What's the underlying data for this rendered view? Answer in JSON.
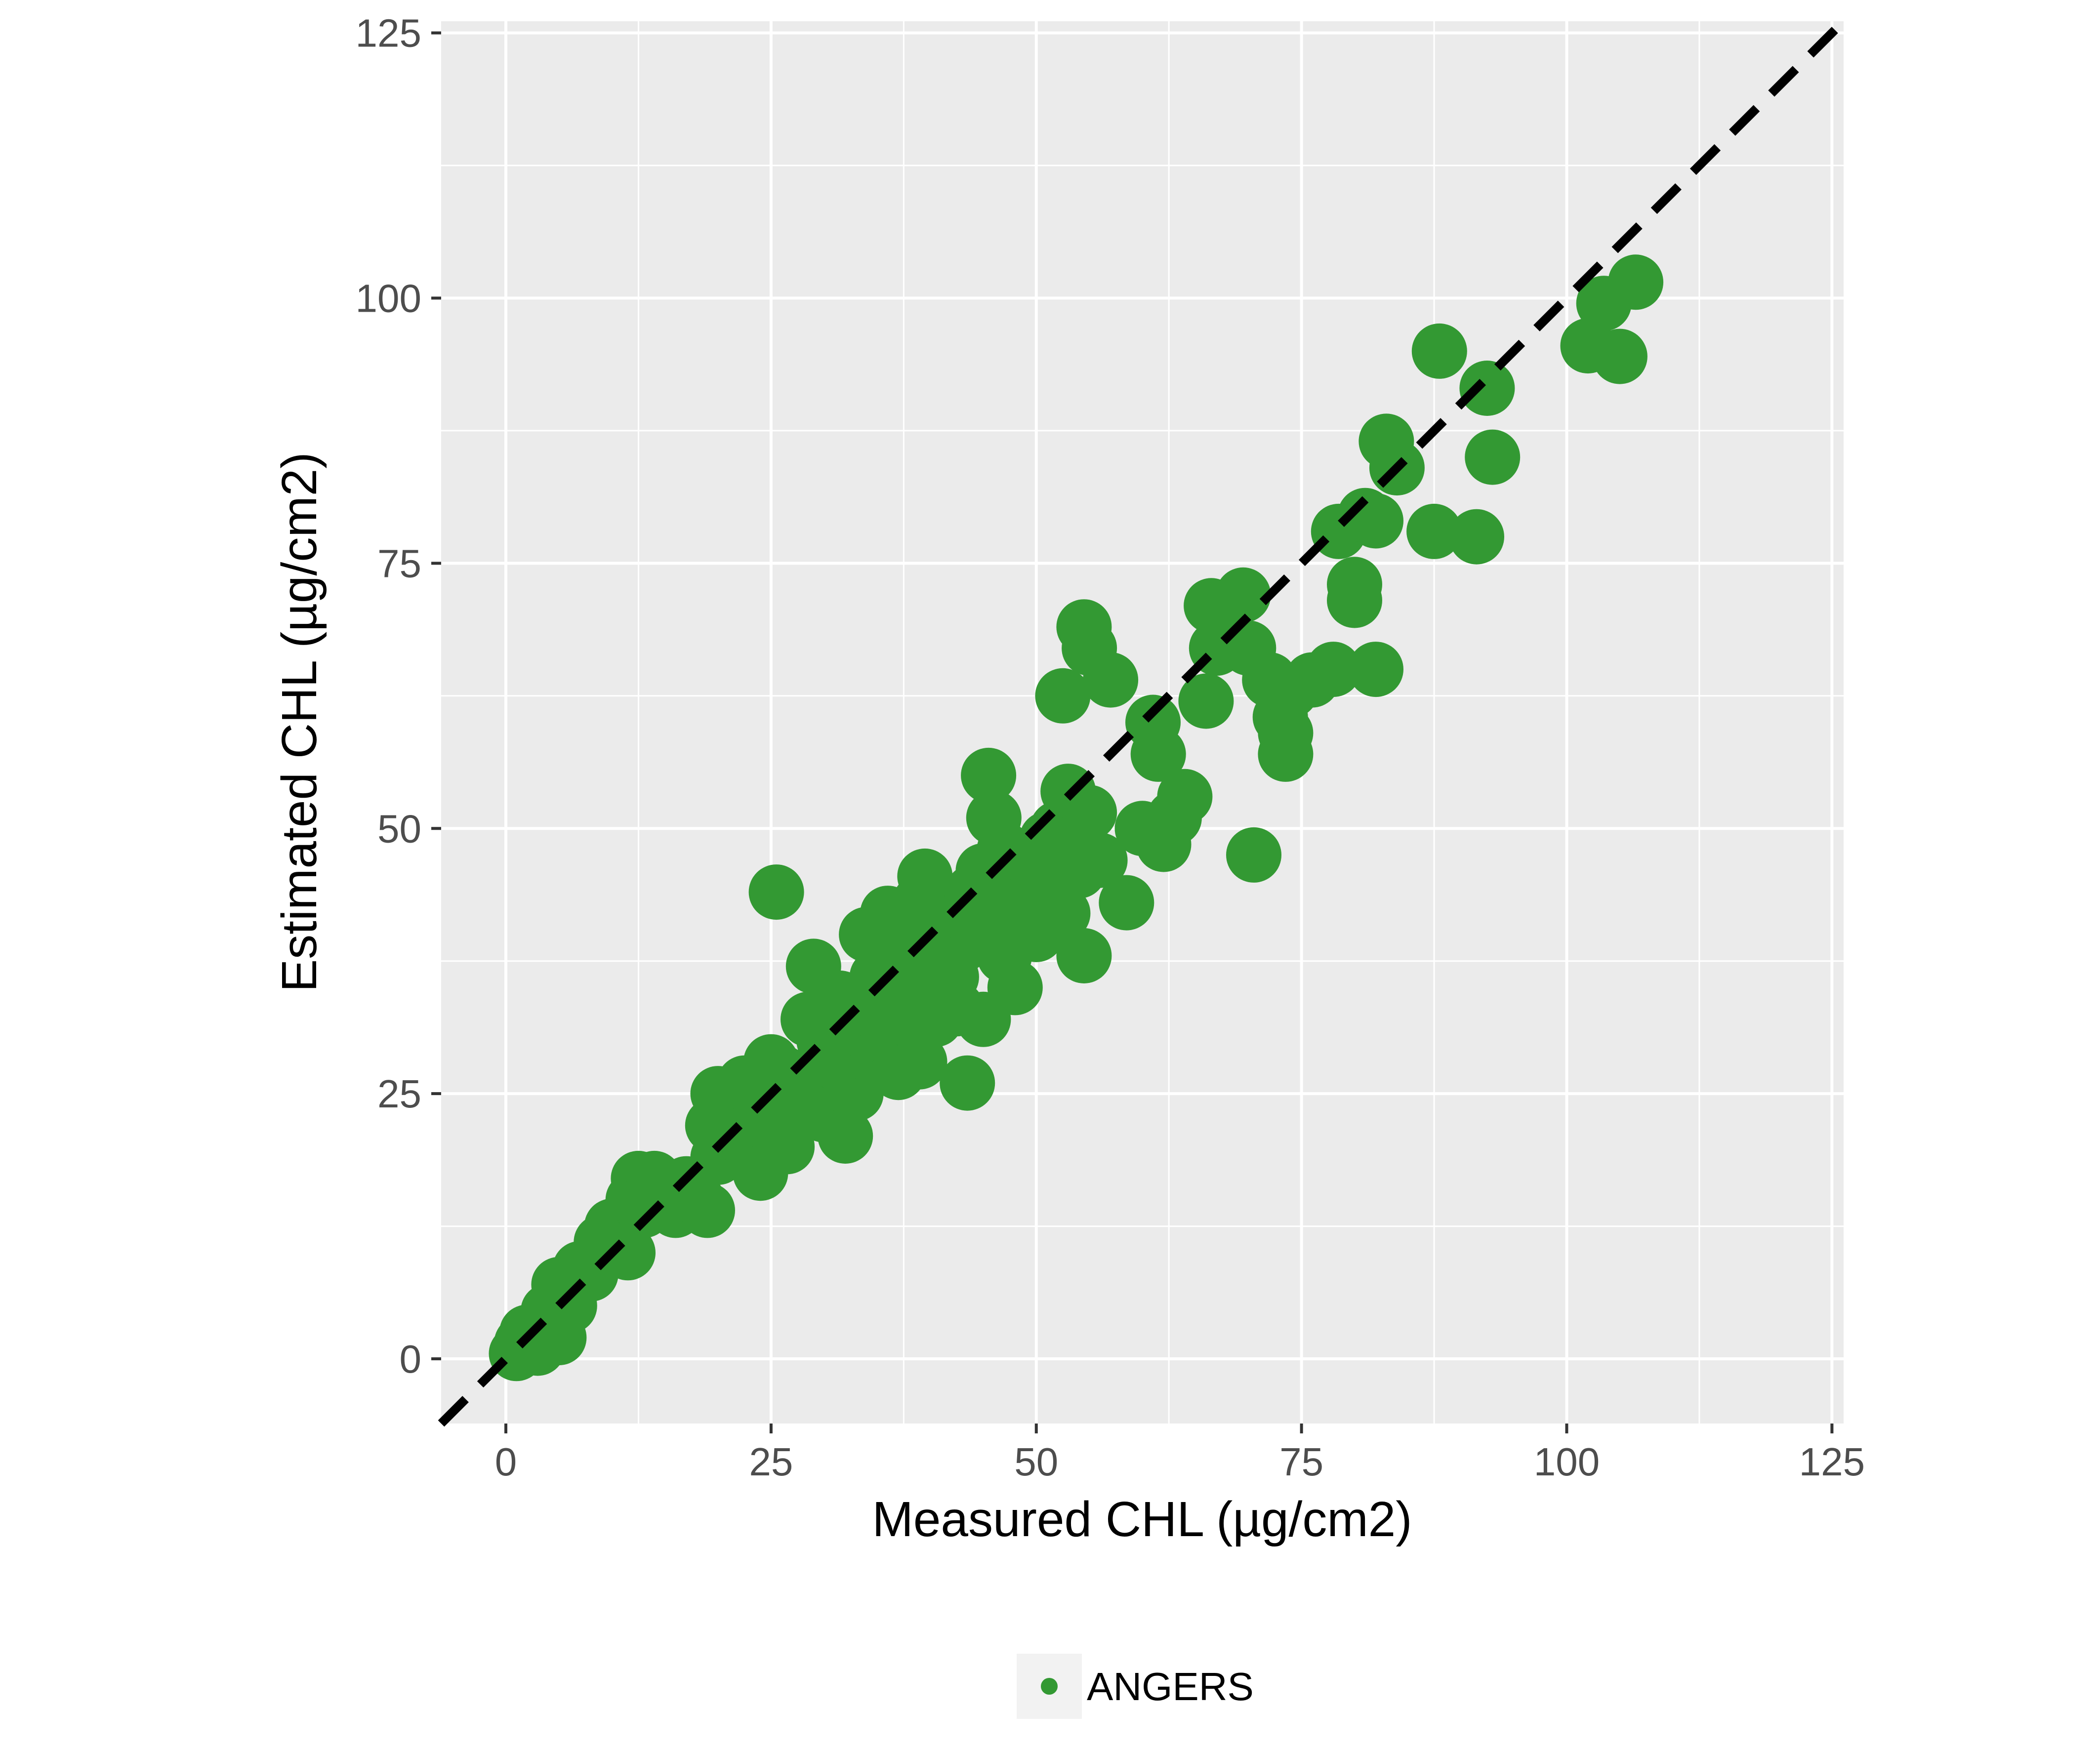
{
  "chart_data": {
    "type": "scatter",
    "xlabel": "Measured CHL (µg/cm2)",
    "ylabel": "Estimated CHL (µg/cm2)",
    "xlim": [
      -6.1,
      126.1
    ],
    "ylim": [
      -6.1,
      126.1
    ],
    "x_ticks": [
      0,
      25,
      50,
      75,
      100,
      125
    ],
    "y_ticks": [
      0,
      25,
      50,
      75,
      100,
      125
    ],
    "x_tick_labels": [
      "0",
      "25",
      "50",
      "75",
      "100",
      "125"
    ],
    "y_tick_labels": [
      "0",
      "25",
      "50",
      "75",
      "100",
      "125"
    ],
    "grid": true,
    "panel_background": "#ebebeb",
    "grid_color": "#ffffff",
    "reference_line": {
      "slope": 1,
      "intercept": 0,
      "style": "dashed",
      "color": "#000000"
    },
    "legend": {
      "position": "bottom",
      "entries": [
        "ANGERS"
      ]
    },
    "series": [
      {
        "name": "ANGERS",
        "color": "#339933",
        "points": [
          [
            1,
            0.5
          ],
          [
            1.5,
            1.5
          ],
          [
            2,
            2.5
          ],
          [
            3,
            1
          ],
          [
            4,
            4.5
          ],
          [
            5,
            2
          ],
          [
            5,
            7
          ],
          [
            6,
            5
          ],
          [
            7,
            8.5
          ],
          [
            8,
            8
          ],
          [
            9,
            11
          ],
          [
            10,
            12.5
          ],
          [
            11,
            13
          ],
          [
            11.5,
            10
          ],
          [
            12,
            15
          ],
          [
            12.5,
            17
          ],
          [
            13,
            14
          ],
          [
            14,
            17
          ],
          [
            15,
            15.5
          ],
          [
            16,
            14
          ],
          [
            17,
            16.5
          ],
          [
            18,
            15
          ],
          [
            19,
            14
          ],
          [
            19.5,
            22
          ],
          [
            20,
            25
          ],
          [
            20,
            19
          ],
          [
            21,
            24
          ],
          [
            22,
            21
          ],
          [
            22.5,
            26
          ],
          [
            23,
            20
          ],
          [
            24,
            17.5
          ],
          [
            24,
            24
          ],
          [
            25,
            28
          ],
          [
            25,
            22
          ],
          [
            25.5,
            44
          ],
          [
            26,
            27
          ],
          [
            26.5,
            20
          ],
          [
            27,
            23
          ],
          [
            27.5,
            26
          ],
          [
            28,
            25
          ],
          [
            28.5,
            32
          ],
          [
            29,
            37
          ],
          [
            29,
            27
          ],
          [
            30,
            30
          ],
          [
            30,
            23
          ],
          [
            31,
            28
          ],
          [
            31.5,
            34
          ],
          [
            32,
            21
          ],
          [
            32,
            31
          ],
          [
            33,
            25
          ],
          [
            33,
            29
          ],
          [
            34,
            40
          ],
          [
            34,
            33
          ],
          [
            35,
            36
          ],
          [
            35,
            28
          ],
          [
            36,
            42
          ],
          [
            36,
            30
          ],
          [
            37,
            34
          ],
          [
            37,
            27
          ],
          [
            37.5,
            39
          ],
          [
            38,
            32
          ],
          [
            38,
            37
          ],
          [
            39,
            43
          ],
          [
            39,
            28
          ],
          [
            39.5,
            45.5
          ],
          [
            40,
            35
          ],
          [
            40.5,
            32
          ],
          [
            41,
            38
          ],
          [
            41.5,
            41
          ],
          [
            42,
            36
          ],
          [
            42.5,
            33
          ],
          [
            43,
            39
          ],
          [
            43.5,
            26
          ],
          [
            44,
            44
          ],
          [
            44.5,
            40
          ],
          [
            45,
            32
          ],
          [
            45,
            46
          ],
          [
            45.5,
            55
          ],
          [
            46,
            51
          ],
          [
            46,
            42
          ],
          [
            47,
            48
          ],
          [
            47,
            38
          ],
          [
            48,
            45
          ],
          [
            48,
            35
          ],
          [
            49,
            43
          ],
          [
            49.5,
            47
          ],
          [
            50,
            44
          ],
          [
            50,
            40
          ],
          [
            51,
            49
          ],
          [
            51.5,
            45
          ],
          [
            52,
            50
          ],
          [
            52.5,
            42
          ],
          [
            52.5,
            62.5
          ],
          [
            53,
            53.5
          ],
          [
            53.5,
            48
          ],
          [
            54,
            46
          ],
          [
            54.5,
            69
          ],
          [
            54.5,
            38
          ],
          [
            55,
            67
          ],
          [
            55,
            51.5
          ],
          [
            56,
            47
          ],
          [
            57,
            64
          ],
          [
            58.5,
            43
          ],
          [
            60,
            50
          ],
          [
            61,
            60
          ],
          [
            61.5,
            57
          ],
          [
            62,
            48.5
          ],
          [
            63,
            51
          ],
          [
            64,
            53
          ],
          [
            66,
            62
          ],
          [
            66.5,
            71
          ],
          [
            67,
            67
          ],
          [
            68,
            68
          ],
          [
            69.5,
            72
          ],
          [
            70,
            67
          ],
          [
            70.5,
            47.5
          ],
          [
            72,
            64
          ],
          [
            73,
            60.5
          ],
          [
            73.5,
            59
          ],
          [
            73.5,
            57
          ],
          [
            74,
            63
          ],
          [
            76,
            64
          ],
          [
            78,
            65
          ],
          [
            78.5,
            78
          ],
          [
            80,
            73
          ],
          [
            80,
            71.5
          ],
          [
            81,
            79.5
          ],
          [
            82,
            65
          ],
          [
            82,
            79
          ],
          [
            83,
            86.5
          ],
          [
            84,
            84
          ],
          [
            87.5,
            78
          ],
          [
            88,
            95
          ],
          [
            91.5,
            77.5
          ],
          [
            92.5,
            91.5
          ],
          [
            93,
            85
          ],
          [
            102,
            95.5
          ],
          [
            103.5,
            99.5
          ],
          [
            105,
            94.5
          ],
          [
            106.5,
            101.5
          ]
        ]
      }
    ]
  }
}
